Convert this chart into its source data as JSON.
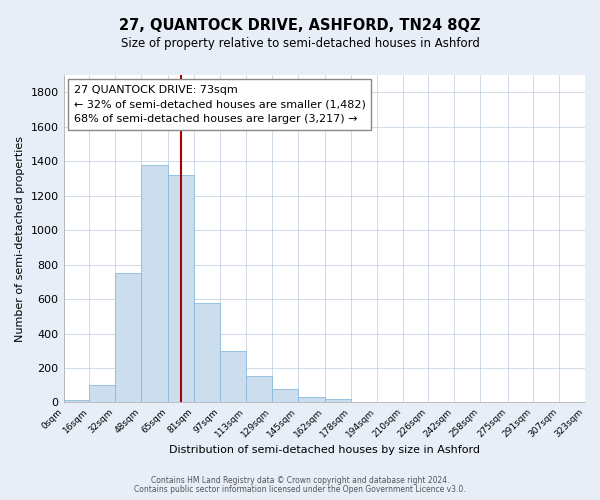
{
  "title": "27, QUANTOCK DRIVE, ASHFORD, TN24 8QZ",
  "subtitle": "Size of property relative to semi-detached houses in Ashford",
  "xlabel": "Distribution of semi-detached houses by size in Ashford",
  "ylabel": "Number of semi-detached properties",
  "annotation_title": "27 QUANTOCK DRIVE: 73sqm",
  "annotation_line1": "← 32% of semi-detached houses are smaller (1,482)",
  "annotation_line2": "68% of semi-detached houses are larger (3,217) →",
  "property_value": 73,
  "bar_color": "#ccdded",
  "bar_edge_color": "#88bbdd",
  "vline_color": "#aa0000",
  "background_color": "#e8eef8",
  "plot_bg_color": "#ffffff",
  "annotation_box_color": "#ffffff",
  "grid_color": "#bbccdd",
  "bin_edges": [
    0,
    16,
    32,
    48,
    65,
    81,
    97,
    113,
    129,
    145,
    162,
    178,
    194,
    210,
    226,
    242,
    258,
    275,
    291,
    307,
    323
  ],
  "bin_counts": [
    15,
    100,
    750,
    1380,
    1320,
    580,
    300,
    155,
    80,
    30,
    20,
    5,
    3,
    2,
    1,
    1,
    1,
    1,
    1,
    1
  ],
  "ylim": [
    0,
    1900
  ],
  "yticks": [
    0,
    200,
    400,
    600,
    800,
    1000,
    1200,
    1400,
    1600,
    1800
  ],
  "footer_line1": "Contains HM Land Registry data © Crown copyright and database right 2024.",
  "footer_line2": "Contains public sector information licensed under the Open Government Licence v3.0."
}
